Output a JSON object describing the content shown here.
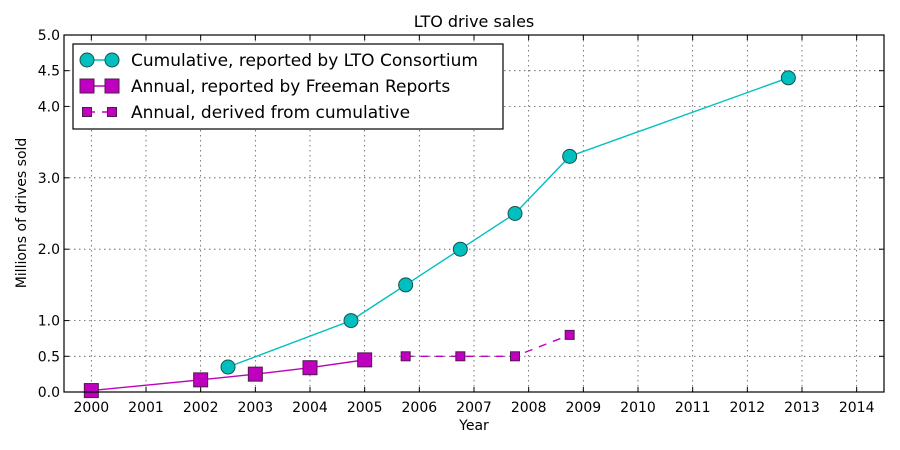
{
  "chart_data": {
    "type": "line",
    "title": "LTO drive sales",
    "xlabel": "Year",
    "ylabel": "Millions of drives sold",
    "xlim": [
      1999.5,
      2014.5
    ],
    "ylim": [
      0.0,
      5.0
    ],
    "xticks": [
      2000,
      2001,
      2002,
      2003,
      2004,
      2005,
      2006,
      2007,
      2008,
      2009,
      2010,
      2011,
      2012,
      2013,
      2014
    ],
    "xtick_labels": [
      "2000",
      "2001",
      "2002",
      "2003",
      "2004",
      "2005",
      "2006",
      "2007",
      "2008",
      "2009",
      "2010",
      "2011",
      "2012",
      "2013",
      "2014"
    ],
    "yticks": [
      0.0,
      0.5,
      1.0,
      2.0,
      3.0,
      4.0,
      4.5,
      5.0
    ],
    "ytick_labels": [
      "0.0",
      "0.5",
      "1.0",
      "2.0",
      "3.0",
      "4.0",
      "4.5",
      "5.0"
    ],
    "grid": true,
    "legend_position": "top-left",
    "series": [
      {
        "name": "Cumulative, reported by LTO Consortium",
        "marker": "circle",
        "line_style": "solid",
        "color": "#00bfbf",
        "x": [
          2002.5,
          2004.75,
          2005.75,
          2006.75,
          2007.75,
          2008.75,
          2012.75
        ],
        "y": [
          0.35,
          1.0,
          1.5,
          2.0,
          2.5,
          3.3,
          4.4
        ]
      },
      {
        "name": "Annual, reported by Freeman Reports",
        "marker": "square",
        "line_style": "solid",
        "color": "#bf00bf",
        "x": [
          2000,
          2002,
          2003,
          2004,
          2005
        ],
        "y": [
          0.02,
          0.17,
          0.25,
          0.34,
          0.45
        ]
      },
      {
        "name": "Annual, derived from cumulative",
        "marker": "small-square",
        "line_style": "dashed",
        "color": "#bf00bf",
        "x": [
          2005.75,
          2006.75,
          2007.75,
          2008.75
        ],
        "y": [
          0.5,
          0.5,
          0.5,
          0.8
        ]
      }
    ]
  }
}
